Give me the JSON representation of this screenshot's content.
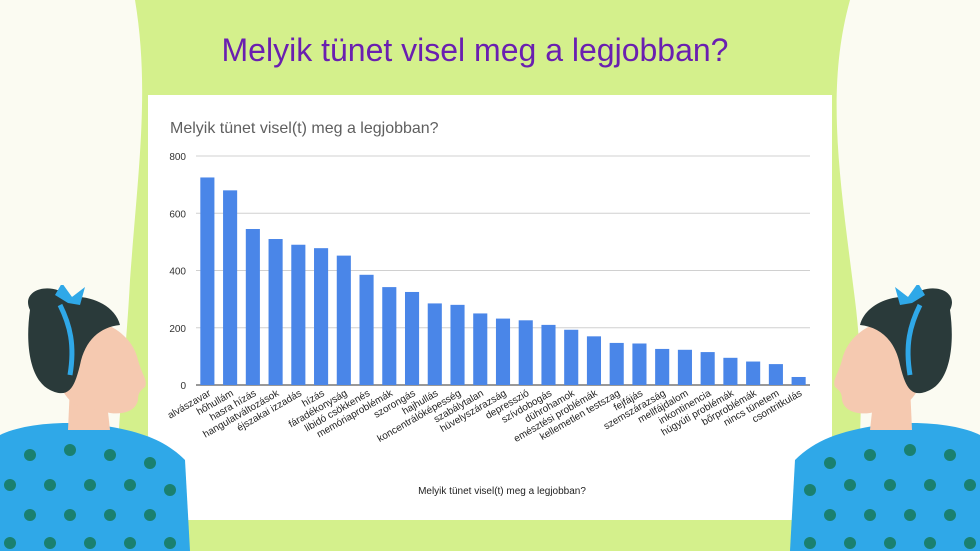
{
  "headline": "Melyik tünet visel meg a legjobban?",
  "colors": {
    "background": "#fbfbf2",
    "blob": "#d4f08c",
    "headline": "#6a1fb0",
    "bar": "#4a86e8",
    "shirt": "#2fa8e8",
    "hair": "#2a3a3a",
    "skin": "#f5c9b0"
  },
  "icons": [
    "woman-left-illustration",
    "woman-right-illustration"
  ],
  "chart_data": {
    "type": "bar",
    "title": "Melyik tünet visel(t) meg a legjobban?",
    "xlabel": "Melyik tünet visel(t) meg a legjobban?",
    "ylabel": "",
    "ylim": [
      0,
      800
    ],
    "yticks": [
      0,
      200,
      400,
      600,
      800
    ],
    "grid": true,
    "categories": [
      "alvászavar",
      "hőhullám",
      "hasra hízás",
      "hangulatváltozások",
      "éjszakai izzadás",
      "hízás",
      "fáradékonyság",
      "libidó csökkenés",
      "memóriaproblémák",
      "szorongás",
      "hajhullás",
      "koncentrálóképesség",
      "szabálytalan",
      "hüvelyszárazság",
      "depresszió",
      "szívdobogás",
      "dührohamok",
      "emésztési problémák",
      "kellemetlen testszag",
      "fejfájás",
      "szemszárazság",
      "mellfájdalom",
      "inkontinencia",
      "húgyúti problémák",
      "bőrproblémák",
      "nincs tünetem",
      "csontritkulás"
    ],
    "values": [
      725,
      680,
      545,
      510,
      490,
      478,
      452,
      385,
      342,
      325,
      285,
      280,
      250,
      232,
      226,
      210,
      193,
      170,
      147,
      145,
      126,
      123,
      115,
      95,
      82,
      73,
      28
    ]
  }
}
